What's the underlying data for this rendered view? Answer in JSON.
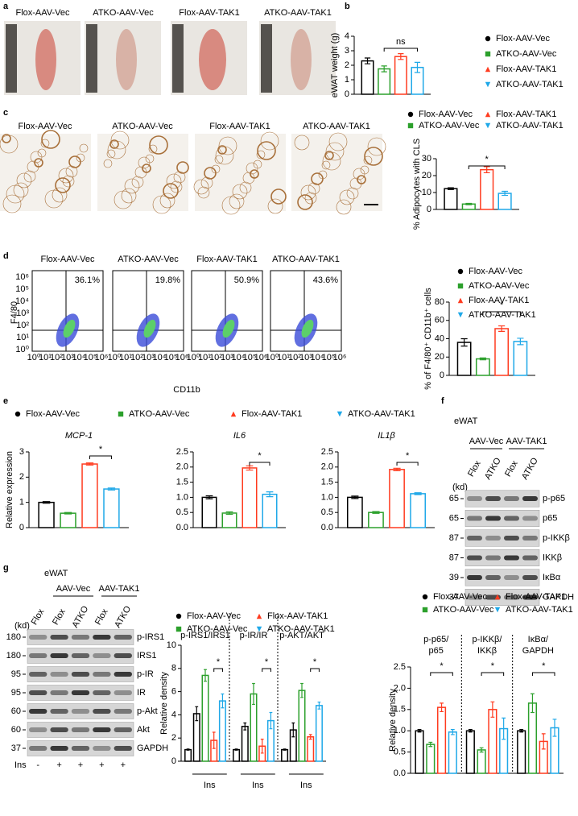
{
  "panels": {
    "letters": [
      "a",
      "b",
      "c",
      "d",
      "e",
      "f",
      "g"
    ],
    "a": {
      "labels": [
        "Flox-AAV-Vec",
        "ATKO-AAV-Vec",
        "Flox-AAV-TAK1",
        "ATKO-AAV-TAK1"
      ]
    },
    "c": {
      "labels": [
        "Flox-AAV-Vec",
        "ATKO-AAV-Vec",
        "Flox-AAV-TAK1",
        "ATKO-AAV-TAK1"
      ]
    },
    "d": {
      "labels": [
        "Flox-AAV-Vec",
        "ATKO-AAV-Vec",
        "Flox-AAV-TAK1",
        "ATKO-AAV-TAK1"
      ],
      "percents": [
        "36.1%",
        "19.8%",
        "50.9%",
        "43.6%"
      ],
      "ylabel": "F4/80",
      "xlabel": "CD11b",
      "flow_ticks": [
        "10⁰",
        "10¹",
        "10²",
        "10³",
        "10⁴",
        "10⁵",
        "10⁶"
      ]
    },
    "f": {
      "tissue": "eWAT",
      "groups": [
        "AAV-Vec",
        "AAV-TAK1"
      ],
      "lanes": [
        "Flox",
        "ATKO",
        "Flox",
        "ATKO"
      ],
      "kd_unit": "(kd)",
      "kd": [
        "65",
        "65",
        "87",
        "87",
        "39",
        "37"
      ],
      "rows": [
        "p-p65",
        "p65",
        "p-IKKβ",
        "IKKβ",
        "IκBα",
        "GAPDH"
      ]
    },
    "g": {
      "tissue": "eWAT",
      "groups": [
        "AAV-Vec",
        "AAV-TAK1"
      ],
      "lanes": [
        "Flox",
        "Flox",
        "ATKO",
        "Flox",
        "ATKO"
      ],
      "kd_unit": "(kd)",
      "kd": [
        "180",
        "180",
        "95",
        "95",
        "60",
        "60",
        "37"
      ],
      "rows": [
        "p-IRS1",
        "IRS1",
        "p-IR",
        "IR",
        "p-Akt",
        "Akt",
        "GAPDH"
      ],
      "ins_label": "Ins",
      "ins": [
        "-",
        "+",
        "+",
        "+",
        "+"
      ]
    }
  },
  "chart_data": [
    {
      "type": "bar",
      "ylabel": "eWAT weight (g)",
      "ylim": [
        0,
        4
      ],
      "yticks": [
        0,
        1,
        2,
        3,
        4
      ],
      "annotation": "ns",
      "series": [
        {
          "name": "Flox-AAV-Vec",
          "color": "#000000",
          "marker": "circle",
          "values": [
            2.3
          ],
          "errors": [
            0.2
          ]
        },
        {
          "name": "ATKO-AAV-Vec",
          "color": "#2ca02c",
          "marker": "square",
          "values": [
            1.75
          ],
          "errors": [
            0.2
          ]
        },
        {
          "name": "Flox-AAV-TAK1",
          "color": "#ff3b1f",
          "marker": "triangle",
          "values": [
            2.6
          ],
          "errors": [
            0.2
          ]
        },
        {
          "name": "ATKO-AAV-TAK1",
          "color": "#1fa8e8",
          "marker": "triangle-down",
          "values": [
            1.85
          ],
          "errors": [
            0.35
          ]
        }
      ]
    },
    {
      "type": "bar",
      "ylabel": "% Adipocytes with CLS",
      "ylim": [
        0,
        30
      ],
      "yticks": [
        0,
        10,
        20,
        30
      ],
      "annotation": "*",
      "series": [
        {
          "name": "Flox-AAV-Vec",
          "color": "#000000",
          "marker": "circle",
          "values": [
            12.3
          ],
          "errors": [
            0.5
          ]
        },
        {
          "name": "ATKO-AAV-Vec",
          "color": "#2ca02c",
          "marker": "square",
          "values": [
            3.2
          ],
          "errors": [
            0.4
          ]
        },
        {
          "name": "Flox-AAV-TAK1",
          "color": "#ff3b1f",
          "marker": "triangle",
          "values": [
            23.5
          ],
          "errors": [
            1.8
          ]
        },
        {
          "name": "ATKO-AAV-TAK1",
          "color": "#1fa8e8",
          "marker": "triangle-down",
          "values": [
            9.5
          ],
          "errors": [
            1.2
          ]
        }
      ]
    },
    {
      "type": "bar",
      "ylabel": "% of F4/80⁺ CD11b⁺ cells",
      "ylim": [
        0,
        80
      ],
      "yticks": [
        0,
        20,
        40,
        60,
        80
      ],
      "annotation": "*",
      "series": [
        {
          "name": "Flox-AAV-Vec",
          "color": "#000000",
          "marker": "circle",
          "values": [
            36
          ],
          "errors": [
            4
          ]
        },
        {
          "name": "ATKO-AAV-Vec",
          "color": "#2ca02c",
          "marker": "square",
          "values": [
            18
          ],
          "errors": [
            1
          ]
        },
        {
          "name": "Flox-AAV-TAK1",
          "color": "#ff3b1f",
          "marker": "triangle",
          "values": [
            51
          ],
          "errors": [
            3
          ]
        },
        {
          "name": "ATKO-AAV-TAK1",
          "color": "#1fa8e8",
          "marker": "triangle-down",
          "values": [
            37
          ],
          "errors": [
            3.5
          ]
        }
      ]
    },
    {
      "type": "bar",
      "title": "MCP-1",
      "ylabel": "Relative expression",
      "ylim": [
        0,
        3
      ],
      "yticks": [
        0,
        1,
        2,
        3
      ],
      "annotation": "*",
      "series": [
        {
          "name": "Flox-AAV-Vec",
          "color": "#000000",
          "marker": "circle",
          "values": [
            1.0
          ],
          "errors": [
            0.03
          ]
        },
        {
          "name": "ATKO-AAV-Vec",
          "color": "#2ca02c",
          "marker": "square",
          "values": [
            0.57
          ],
          "errors": [
            0.03
          ]
        },
        {
          "name": "Flox-AAV-TAK1",
          "color": "#ff3b1f",
          "marker": "triangle",
          "values": [
            2.52
          ],
          "errors": [
            0.04
          ]
        },
        {
          "name": "ATKO-AAV-TAK1",
          "color": "#1fa8e8",
          "marker": "triangle-down",
          "values": [
            1.53
          ],
          "errors": [
            0.04
          ]
        }
      ]
    },
    {
      "type": "bar",
      "title": "IL6",
      "ylim": [
        0,
        2.5
      ],
      "annotation": "*",
      "yticks": [
        {
          "value": 0,
          "label": "0.0"
        },
        {
          "value": 0.5,
          "label": "0.5"
        },
        {
          "value": 1,
          "label": "1.0"
        },
        {
          "value": 1.5,
          "label": "1.5"
        },
        {
          "value": 2,
          "label": "2.0"
        },
        {
          "value": 2.5,
          "label": "2.5"
        }
      ],
      "series": [
        {
          "color": "#000000",
          "values": [
            1.0
          ],
          "errors": [
            0.05
          ]
        },
        {
          "color": "#2ca02c",
          "values": [
            0.48
          ],
          "errors": [
            0.04
          ]
        },
        {
          "color": "#ff3b1f",
          "values": [
            1.97
          ],
          "errors": [
            0.07
          ]
        },
        {
          "color": "#1fa8e8",
          "values": [
            1.1
          ],
          "errors": [
            0.08
          ]
        }
      ]
    },
    {
      "type": "bar",
      "title": "IL1β",
      "ylim": [
        0,
        2.5
      ],
      "annotation": "*",
      "yticks": [
        {
          "value": 0,
          "label": "0.0"
        },
        {
          "value": 0.5,
          "label": "0.5"
        },
        {
          "value": 1,
          "label": "1.0"
        },
        {
          "value": 1.5,
          "label": "1.5"
        },
        {
          "value": 2,
          "label": "2.0"
        },
        {
          "value": 2.5,
          "label": "2.5"
        }
      ],
      "series": [
        {
          "color": "#000000",
          "values": [
            1.0
          ],
          "errors": [
            0.04
          ]
        },
        {
          "color": "#2ca02c",
          "values": [
            0.5
          ],
          "errors": [
            0.03
          ]
        },
        {
          "color": "#ff3b1f",
          "values": [
            1.92
          ],
          "errors": [
            0.04
          ]
        },
        {
          "color": "#1fa8e8",
          "values": [
            1.12
          ],
          "errors": [
            0.03
          ]
        }
      ]
    },
    {
      "type": "bar",
      "ylabel": "Relative density",
      "xlabel": "Ins",
      "ylim": [
        0,
        10
      ],
      "yticks": [
        0,
        2,
        4,
        6,
        8,
        10
      ],
      "annotation": "*",
      "categories": [
        "p-IRS1/IRS1",
        "p-IR/IR",
        "p-AKT/AKT"
      ],
      "series": [
        {
          "color": "#000000",
          "values": [
            1,
            1,
            1
          ],
          "errors": [
            0.05,
            0.05,
            0.05
          ]
        },
        {
          "name": "Flox-AAV-Vec",
          "color": "#000000",
          "marker": "circle",
          "values": [
            4.1,
            3.0,
            2.7
          ],
          "errors": [
            0.6,
            0.3,
            0.6
          ]
        },
        {
          "name": "ATKO-AAV-Vec",
          "color": "#2ca02c",
          "marker": "square",
          "values": [
            7.4,
            5.8,
            6.1
          ],
          "errors": [
            0.5,
            0.9,
            0.6
          ]
        },
        {
          "name": "Flox-AAV-TAK1",
          "color": "#ff3b1f",
          "marker": "triangle",
          "values": [
            1.8,
            1.3,
            2.1
          ],
          "errors": [
            0.7,
            0.6,
            0.2
          ]
        },
        {
          "name": "ATKO-AAV-TAK1",
          "color": "#1fa8e8",
          "marker": "triangle-down",
          "values": [
            5.2,
            3.5,
            4.8
          ],
          "errors": [
            0.6,
            0.7,
            0.3
          ]
        }
      ]
    },
    {
      "type": "bar",
      "ylabel": "Relative density",
      "ylim": [
        0,
        2.5
      ],
      "annotation": "*",
      "yticks": [
        {
          "value": 0,
          "label": "0.0"
        },
        {
          "value": 0.5,
          "label": "0.5"
        },
        {
          "value": 1,
          "label": "1.0"
        },
        {
          "value": 1.5,
          "label": "1.5"
        },
        {
          "value": 2,
          "label": "2.0"
        },
        {
          "value": 2.5,
          "label": "2.5"
        }
      ],
      "categories": [
        [
          "p-p65/",
          "p65"
        ],
        [
          "p-IKKβ/",
          "IKKβ"
        ],
        [
          "IκBα/",
          "GAPDH"
        ]
      ],
      "series": [
        {
          "name": "Flox-AAV-Vec",
          "color": "#000000",
          "marker": "circle",
          "values": [
            1,
            1,
            1
          ],
          "errors": [
            0.03,
            0.03,
            0.03
          ]
        },
        {
          "name": "ATKO-AAV-Vec",
          "color": "#2ca02c",
          "marker": "square",
          "values": [
            0.68,
            0.55,
            1.65
          ],
          "errors": [
            0.05,
            0.05,
            0.22
          ]
        },
        {
          "name": "Flox-AAV-TAK1",
          "color": "#ff3b1f",
          "marker": "triangle",
          "values": [
            1.55,
            1.5,
            0.75
          ],
          "errors": [
            0.1,
            0.18,
            0.18
          ]
        },
        {
          "name": "ATKO-AAV-TAK1",
          "color": "#1fa8e8",
          "marker": "triangle-down",
          "values": [
            0.97,
            1.05,
            1.07
          ],
          "errors": [
            0.06,
            0.25,
            0.2
          ]
        }
      ]
    }
  ]
}
